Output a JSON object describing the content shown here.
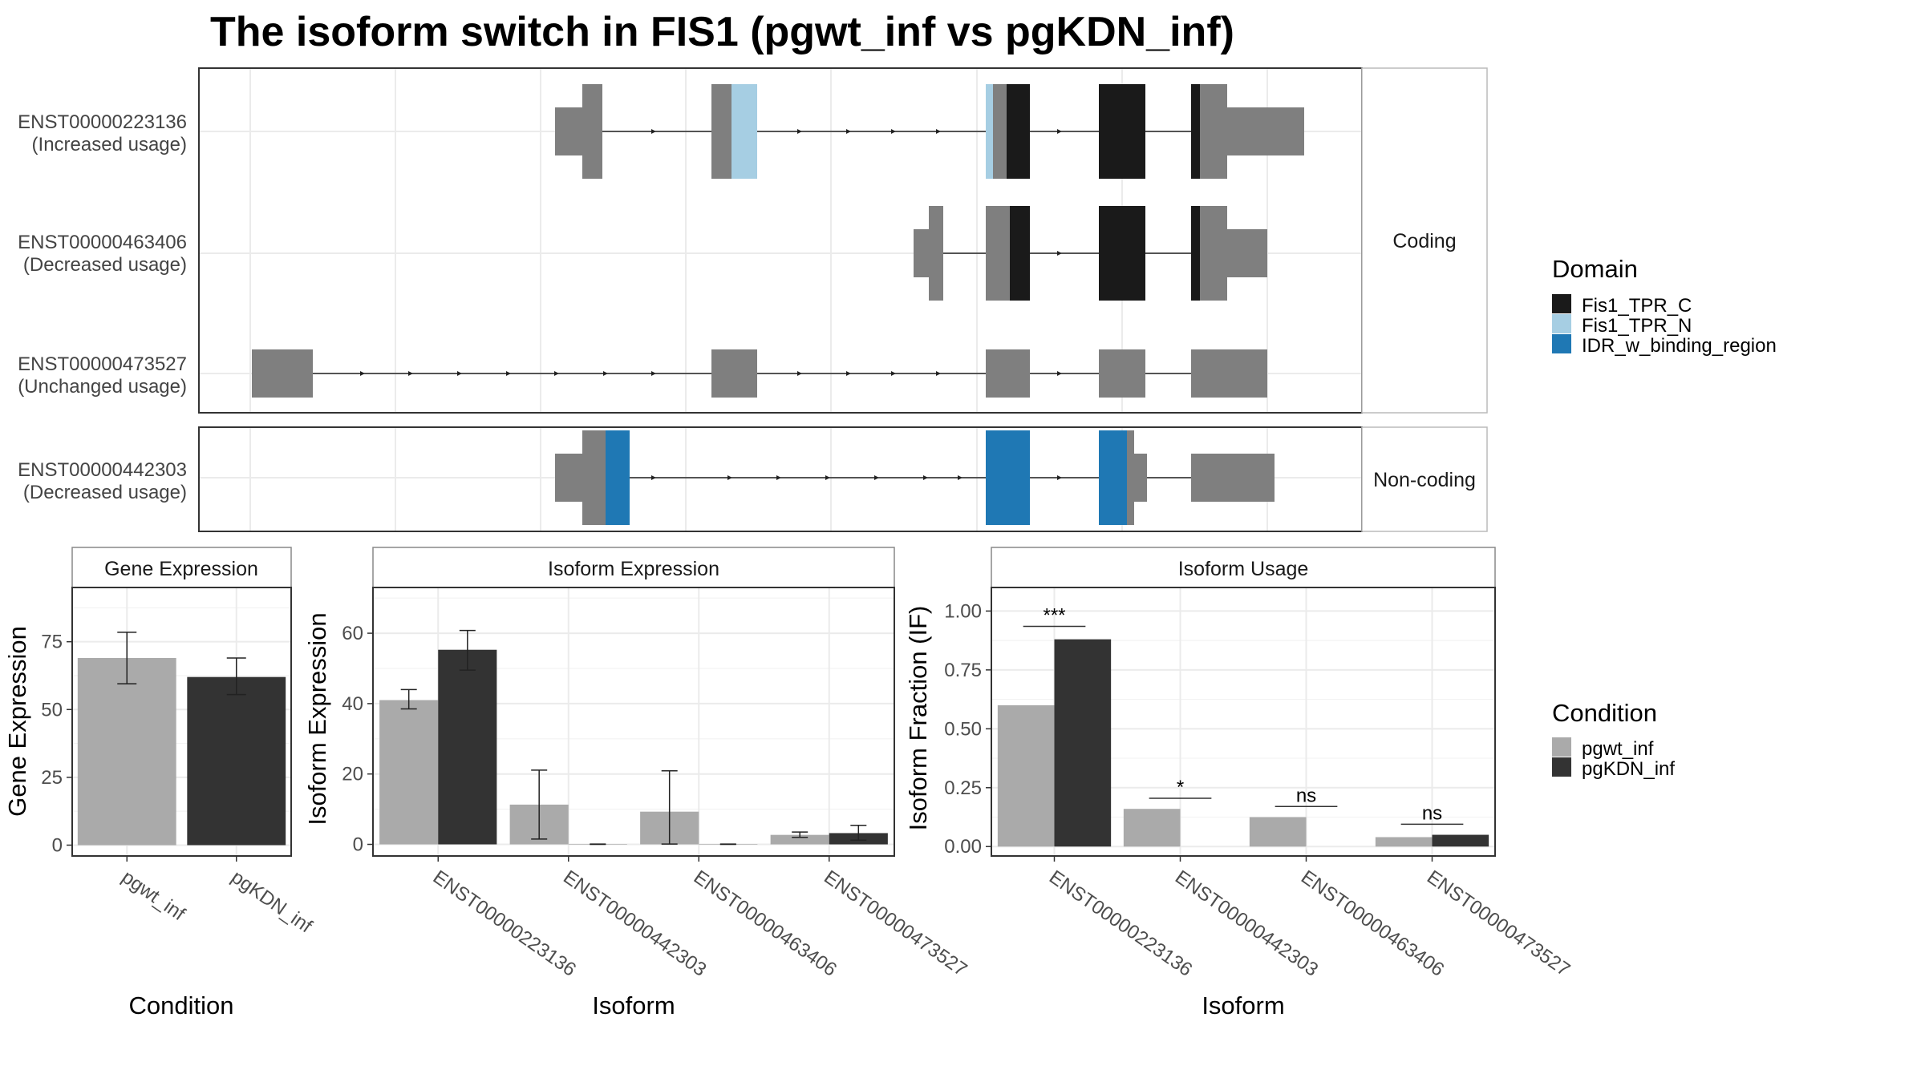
{
  "title": "The isoform switch in FIS1 (pgwt_inf vs pgKDN_inf)",
  "colors": {
    "grey_exon": "#7f7f7f",
    "fis1_tpr_c": "#1a1a1a",
    "fis1_tpr_n": "#a6cee3",
    "idr": "#1f78b4",
    "pgwt_inf": "#aaaaaa",
    "pgKDN_inf": "#333333",
    "grid": "#ebebeb",
    "strip_bg": "#ffffff"
  },
  "structure": {
    "facets": [
      {
        "label": "Coding",
        "key": "coding"
      },
      {
        "label": "Non-coding",
        "key": "noncoding"
      }
    ],
    "isoforms": [
      {
        "id": "ENST00000223136",
        "status": "(Increased usage)",
        "facet": "coding"
      },
      {
        "id": "ENST00000463406",
        "status": "(Decreased usage)",
        "facet": "coding"
      },
      {
        "id": "ENST00000473527",
        "status": "(Unchanged usage)",
        "facet": "coding"
      },
      {
        "id": "ENST00000442303",
        "status": "(Decreased usage)",
        "facet": "noncoding"
      }
    ],
    "legend": {
      "title": "Domain",
      "items": [
        {
          "label": "Fis1_TPR_C",
          "color_key": "fis1_tpr_c"
        },
        {
          "label": "Fis1_TPR_N",
          "color_key": "fis1_tpr_n"
        },
        {
          "label": "IDR_w_binding_region",
          "color_key": "idr"
        }
      ]
    }
  },
  "condition_legend": {
    "title": "Condition",
    "items": [
      {
        "label": "pgwt_inf",
        "color_key": "pgwt_inf"
      },
      {
        "label": "pgKDN_inf",
        "color_key": "pgKDN_inf"
      }
    ]
  },
  "chart_data": [
    {
      "type": "bar",
      "title": "Gene Expression",
      "xlabel": "Condition",
      "ylabel": "Gene Expression",
      "categories": [
        "pgwt_inf",
        "pgKDN_inf"
      ],
      "values": [
        69,
        62
      ],
      "errors": [
        [
          59.5,
          78.5
        ],
        [
          55.5,
          69
        ]
      ],
      "ylim": [
        -4,
        95
      ],
      "yticks": [
        0,
        25,
        50,
        75
      ],
      "grid": true
    },
    {
      "type": "bar",
      "title": "Isoform Expression",
      "xlabel": "Isoform",
      "ylabel": "Isoform Expression",
      "categories": [
        "ENST00000223136",
        "ENST00000442303",
        "ENST00000463406",
        "ENST00000473527"
      ],
      "series": [
        {
          "name": "pgwt_inf",
          "values": [
            41,
            11.3,
            9.3,
            2.7
          ],
          "errors": [
            [
              38.5,
              44
            ],
            [
              1.5,
              21.1
            ],
            [
              0.1,
              20.9
            ],
            [
              2,
              3.5
            ]
          ]
        },
        {
          "name": "pgKDN_inf",
          "values": [
            55.3,
            0.05,
            0.05,
            3.2
          ],
          "errors": [
            [
              49.5,
              60.8
            ],
            [
              0,
              0.1
            ],
            [
              0,
              0.1
            ],
            [
              1.2,
              5.4
            ]
          ]
        }
      ],
      "ylim": [
        -3.3,
        73
      ],
      "yticks": [
        0,
        20,
        40,
        60
      ],
      "grid": true
    },
    {
      "type": "bar",
      "title": "Isoform Usage",
      "xlabel": "Isoform",
      "ylabel": "Isoform Fraction (IF)",
      "categories": [
        "ENST00000223136",
        "ENST00000442303",
        "ENST00000463406",
        "ENST00000473527"
      ],
      "series": [
        {
          "name": "pgwt_inf",
          "values": [
            0.6,
            0.16,
            0.125,
            0.04
          ]
        },
        {
          "name": "pgKDN_inf",
          "values": [
            0.88,
            0,
            0,
            0.05
          ]
        }
      ],
      "significance": [
        "***",
        "*",
        "ns",
        "ns"
      ],
      "sig_line_y": [
        0.935,
        0.205,
        0.17,
        0.095
      ],
      "ylim": [
        -0.04,
        1.1
      ],
      "yticks": [
        0.0,
        0.25,
        0.5,
        0.75,
        1.0
      ],
      "ytick_labels": [
        "0.00",
        "0.25",
        "0.50",
        "0.75",
        "1.00"
      ],
      "grid": true
    }
  ]
}
